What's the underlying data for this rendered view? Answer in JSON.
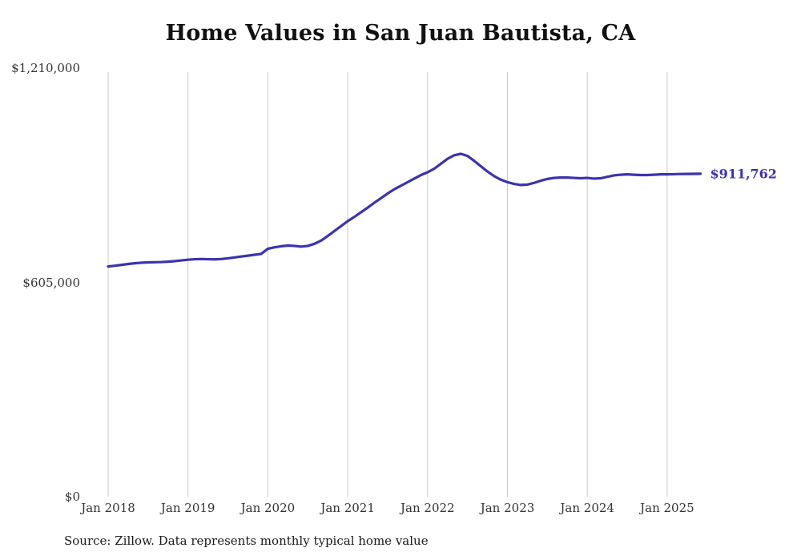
{
  "title": "Home Values in San Juan Bautista, CA",
  "end_label": "$911,762",
  "source_note": "Source: Zillow. Data represents monthly typical home value",
  "colors": {
    "line": "#3b33b0",
    "end_label": "#3b33b0",
    "grid": "#cccccc",
    "axis_text": "#333333"
  },
  "chart_data": {
    "type": "line",
    "title": "Home Values in San Juan Bautista, CA",
    "xlabel": "",
    "ylabel": "",
    "ylim": [
      0,
      1210000
    ],
    "yticks": [
      1210000,
      605000,
      0
    ],
    "ytick_labels": [
      "$1,210,000",
      "$605,000",
      "$0"
    ],
    "x_tick_labels": [
      "Jan 2018",
      "Jan 2019",
      "Jan 2020",
      "Jan 2021",
      "Jan 2022",
      "Jan 2023",
      "Jan 2024",
      "Jan 2025"
    ],
    "x_start_month": "2018-01",
    "x_end_month": "2025-06",
    "grid": "vertical-only",
    "legend": "none",
    "final_value": 911762,
    "series": [
      {
        "name": "Typical home value",
        "values": [
          650000,
          652000,
          654500,
          657000,
          659000,
          660500,
          661500,
          662000,
          662500,
          663500,
          665000,
          667000,
          669000,
          670500,
          671000,
          670500,
          670000,
          671000,
          673000,
          675500,
          678000,
          680500,
          683000,
          685500,
          700000,
          704000,
          707000,
          709000,
          708000,
          706000,
          708000,
          714000,
          723000,
          736000,
          750000,
          764000,
          778000,
          790000,
          803000,
          816000,
          830000,
          843000,
          856000,
          868000,
          878000,
          888000,
          898000,
          908000,
          916000,
          926000,
          940000,
          954000,
          964000,
          968000,
          962000,
          948000,
          933000,
          918000,
          905000,
          895000,
          888000,
          883000,
          880000,
          881000,
          886000,
          892000,
          897000,
          900000,
          901000,
          901000,
          900000,
          899000,
          900000,
          898000,
          899000,
          903000,
          907000,
          909000,
          910000,
          909000,
          908000,
          908000,
          909000,
          910000,
          910000,
          910500,
          911000,
          911200,
          911500,
          911762
        ]
      }
    ]
  }
}
